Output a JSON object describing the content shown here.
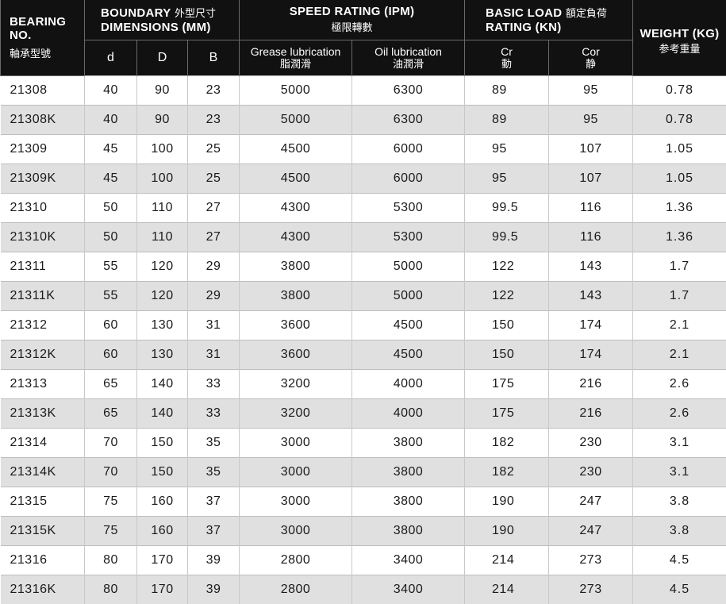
{
  "headers": {
    "bearing_en": "BEARING NO.",
    "bearing_cn": "軸承型號",
    "boundary_en1": "BOUNDARY",
    "boundary_cn": "外型尺寸",
    "boundary_en2": "DIMENSIONS (MM)",
    "speed_en": "SPEED RATING (IPM)",
    "speed_cn": "極限轉數",
    "load_en1": "BASIC LOAD",
    "load_cn": "額定負荷",
    "load_en2": "RATING (KN)",
    "weight_en": "WEIGHT (KG)",
    "weight_cn": "参考重量",
    "d": "d",
    "D": "D",
    "B": "B",
    "grease_en": "Grease lubrication",
    "grease_cn": "脂潤滑",
    "oil_en": "Oil lubrication",
    "oil_cn": "油潤滑",
    "cr_en": "Cr",
    "cr_cn": "動",
    "cor_en": "Cor",
    "cor_cn": "静"
  },
  "rows": [
    [
      "21308",
      "40",
      "90",
      "23",
      "5000",
      "6300",
      "89",
      "95",
      "0.78"
    ],
    [
      "21308K",
      "40",
      "90",
      "23",
      "5000",
      "6300",
      "89",
      "95",
      "0.78"
    ],
    [
      "21309",
      "45",
      "100",
      "25",
      "4500",
      "6000",
      "95",
      "107",
      "1.05"
    ],
    [
      "21309K",
      "45",
      "100",
      "25",
      "4500",
      "6000",
      "95",
      "107",
      "1.05"
    ],
    [
      "21310",
      "50",
      "110",
      "27",
      "4300",
      "5300",
      "99.5",
      "116",
      "1.36"
    ],
    [
      "21310K",
      "50",
      "110",
      "27",
      "4300",
      "5300",
      "99.5",
      "116",
      "1.36"
    ],
    [
      "21311",
      "55",
      "120",
      "29",
      "3800",
      "5000",
      "122",
      "143",
      "1.7"
    ],
    [
      "21311K",
      "55",
      "120",
      "29",
      "3800",
      "5000",
      "122",
      "143",
      "1.7"
    ],
    [
      "21312",
      "60",
      "130",
      "31",
      "3600",
      "4500",
      "150",
      "174",
      "2.1"
    ],
    [
      "21312K",
      "60",
      "130",
      "31",
      "3600",
      "4500",
      "150",
      "174",
      "2.1"
    ],
    [
      "21313",
      "65",
      "140",
      "33",
      "3200",
      "4000",
      "175",
      "216",
      "2.6"
    ],
    [
      "21313K",
      "65",
      "140",
      "33",
      "3200",
      "4000",
      "175",
      "216",
      "2.6"
    ],
    [
      "21314",
      "70",
      "150",
      "35",
      "3000",
      "3800",
      "182",
      "230",
      "3.1"
    ],
    [
      "21314K",
      "70",
      "150",
      "35",
      "3000",
      "3800",
      "182",
      "230",
      "3.1"
    ],
    [
      "21315",
      "75",
      "160",
      "37",
      "3000",
      "3800",
      "190",
      "247",
      "3.8"
    ],
    [
      "21315K",
      "75",
      "160",
      "37",
      "3000",
      "3800",
      "190",
      "247",
      "3.8"
    ],
    [
      "21316",
      "80",
      "170",
      "39",
      "2800",
      "3400",
      "214",
      "273",
      "4.5"
    ],
    [
      "21316K",
      "80",
      "170",
      "39",
      "2800",
      "3400",
      "214",
      "273",
      "4.5"
    ]
  ]
}
